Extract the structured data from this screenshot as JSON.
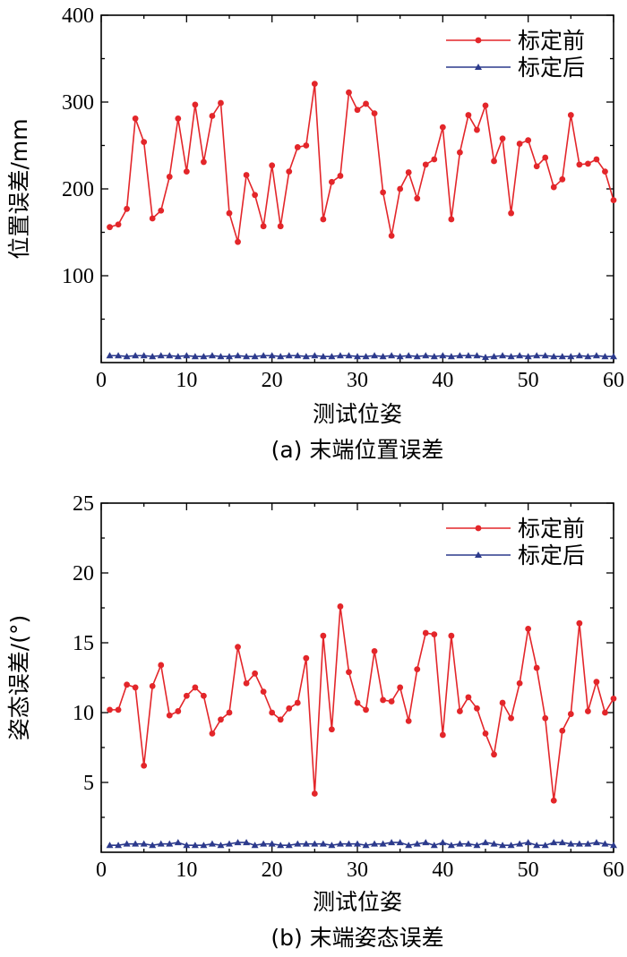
{
  "chart_data": [
    {
      "type": "line",
      "xlabel": "测试位姿",
      "ylabel": "位置误差/mm",
      "caption": "(a) 末端位置误差",
      "xlim": [
        0,
        60
      ],
      "ylim": [
        0,
        400
      ],
      "xticks": [
        0,
        10,
        20,
        30,
        40,
        50,
        60
      ],
      "yticks": [
        100,
        200,
        300,
        400
      ],
      "legend_position": "top-right",
      "x": [
        1,
        2,
        3,
        4,
        5,
        6,
        7,
        8,
        9,
        10,
        11,
        12,
        13,
        14,
        15,
        16,
        17,
        18,
        19,
        20,
        21,
        22,
        23,
        24,
        25,
        26,
        27,
        28,
        29,
        30,
        31,
        32,
        33,
        34,
        35,
        36,
        37,
        38,
        39,
        40,
        41,
        42,
        43,
        44,
        45,
        46,
        47,
        48,
        49,
        50,
        51,
        52,
        53,
        54,
        55,
        56,
        57,
        58,
        59,
        60
      ],
      "series": [
        {
          "name": "标定前",
          "color": "#e3262a",
          "marker": "circle",
          "values": [
            156,
            159,
            177,
            281,
            254,
            166,
            175,
            214,
            281,
            220,
            297,
            231,
            284,
            299,
            172,
            139,
            216,
            193,
            157,
            227,
            157,
            220,
            248,
            250,
            321,
            165,
            208,
            215,
            311,
            291,
            298,
            287,
            196,
            146,
            200,
            219,
            189,
            228,
            234,
            271,
            165,
            242,
            285,
            268,
            296,
            232,
            258,
            172,
            252,
            256,
            226,
            236,
            202,
            211,
            285,
            228,
            229,
            234,
            220,
            187
          ]
        },
        {
          "name": "标定后",
          "color": "#2c3a8c",
          "marker": "triangle",
          "values": [
            8,
            8,
            7,
            8,
            8,
            7,
            8,
            8,
            7,
            8,
            7,
            7,
            8,
            7,
            7,
            8,
            7,
            7,
            8,
            8,
            7,
            8,
            8,
            7,
            8,
            7,
            7,
            8,
            8,
            7,
            7,
            8,
            7,
            8,
            7,
            8,
            7,
            8,
            7,
            8,
            7,
            8,
            8,
            8,
            6,
            7,
            8,
            7,
            8,
            7,
            8,
            8,
            7,
            7,
            7,
            8,
            7,
            8,
            7,
            7
          ]
        }
      ]
    },
    {
      "type": "line",
      "xlabel": "测试位姿",
      "ylabel": "姿态误差/(°)",
      "caption": "(b) 末端姿态误差",
      "xlim": [
        0,
        60
      ],
      "ylim": [
        0,
        25
      ],
      "xticks": [
        0,
        10,
        20,
        30,
        40,
        50,
        60
      ],
      "yticks": [
        5,
        10,
        15,
        20,
        25
      ],
      "legend_position": "top-right",
      "x": [
        1,
        2,
        3,
        4,
        5,
        6,
        7,
        8,
        9,
        10,
        11,
        12,
        13,
        14,
        15,
        16,
        17,
        18,
        19,
        20,
        21,
        22,
        23,
        24,
        25,
        26,
        27,
        28,
        29,
        30,
        31,
        32,
        33,
        34,
        35,
        36,
        37,
        38,
        39,
        40,
        41,
        42,
        43,
        44,
        45,
        46,
        47,
        48,
        49,
        50,
        51,
        52,
        53,
        54,
        55,
        56,
        57,
        58,
        59,
        60
      ],
      "series": [
        {
          "name": "标定前",
          "color": "#e3262a",
          "marker": "circle",
          "values": [
            10.2,
            10.2,
            12.0,
            11.8,
            6.2,
            11.9,
            13.4,
            9.8,
            10.1,
            11.2,
            11.8,
            11.2,
            8.5,
            9.5,
            10.0,
            14.7,
            12.1,
            12.8,
            11.5,
            10.0,
            9.5,
            10.3,
            10.7,
            13.9,
            4.2,
            15.5,
            8.8,
            17.6,
            12.9,
            10.7,
            10.2,
            14.4,
            10.9,
            10.8,
            11.8,
            9.4,
            13.1,
            15.7,
            15.6,
            8.4,
            15.5,
            10.1,
            11.1,
            10.3,
            8.5,
            7.0,
            10.7,
            9.6,
            12.1,
            16.0,
            13.2,
            9.6,
            3.7,
            8.7,
            9.9,
            16.4,
            10.1,
            12.2,
            10.0,
            11.0
          ]
        },
        {
          "name": "标定后",
          "color": "#2c3a8c",
          "marker": "triangle",
          "values": [
            0.5,
            0.5,
            0.6,
            0.6,
            0.6,
            0.5,
            0.6,
            0.6,
            0.7,
            0.5,
            0.5,
            0.5,
            0.6,
            0.5,
            0.6,
            0.7,
            0.7,
            0.5,
            0.6,
            0.6,
            0.5,
            0.5,
            0.6,
            0.6,
            0.6,
            0.6,
            0.5,
            0.6,
            0.6,
            0.6,
            0.5,
            0.6,
            0.6,
            0.7,
            0.7,
            0.5,
            0.6,
            0.7,
            0.5,
            0.7,
            0.5,
            0.6,
            0.6,
            0.5,
            0.7,
            0.6,
            0.5,
            0.5,
            0.6,
            0.7,
            0.5,
            0.5,
            0.7,
            0.7,
            0.6,
            0.6,
            0.6,
            0.7,
            0.6,
            0.5
          ]
        }
      ]
    }
  ]
}
